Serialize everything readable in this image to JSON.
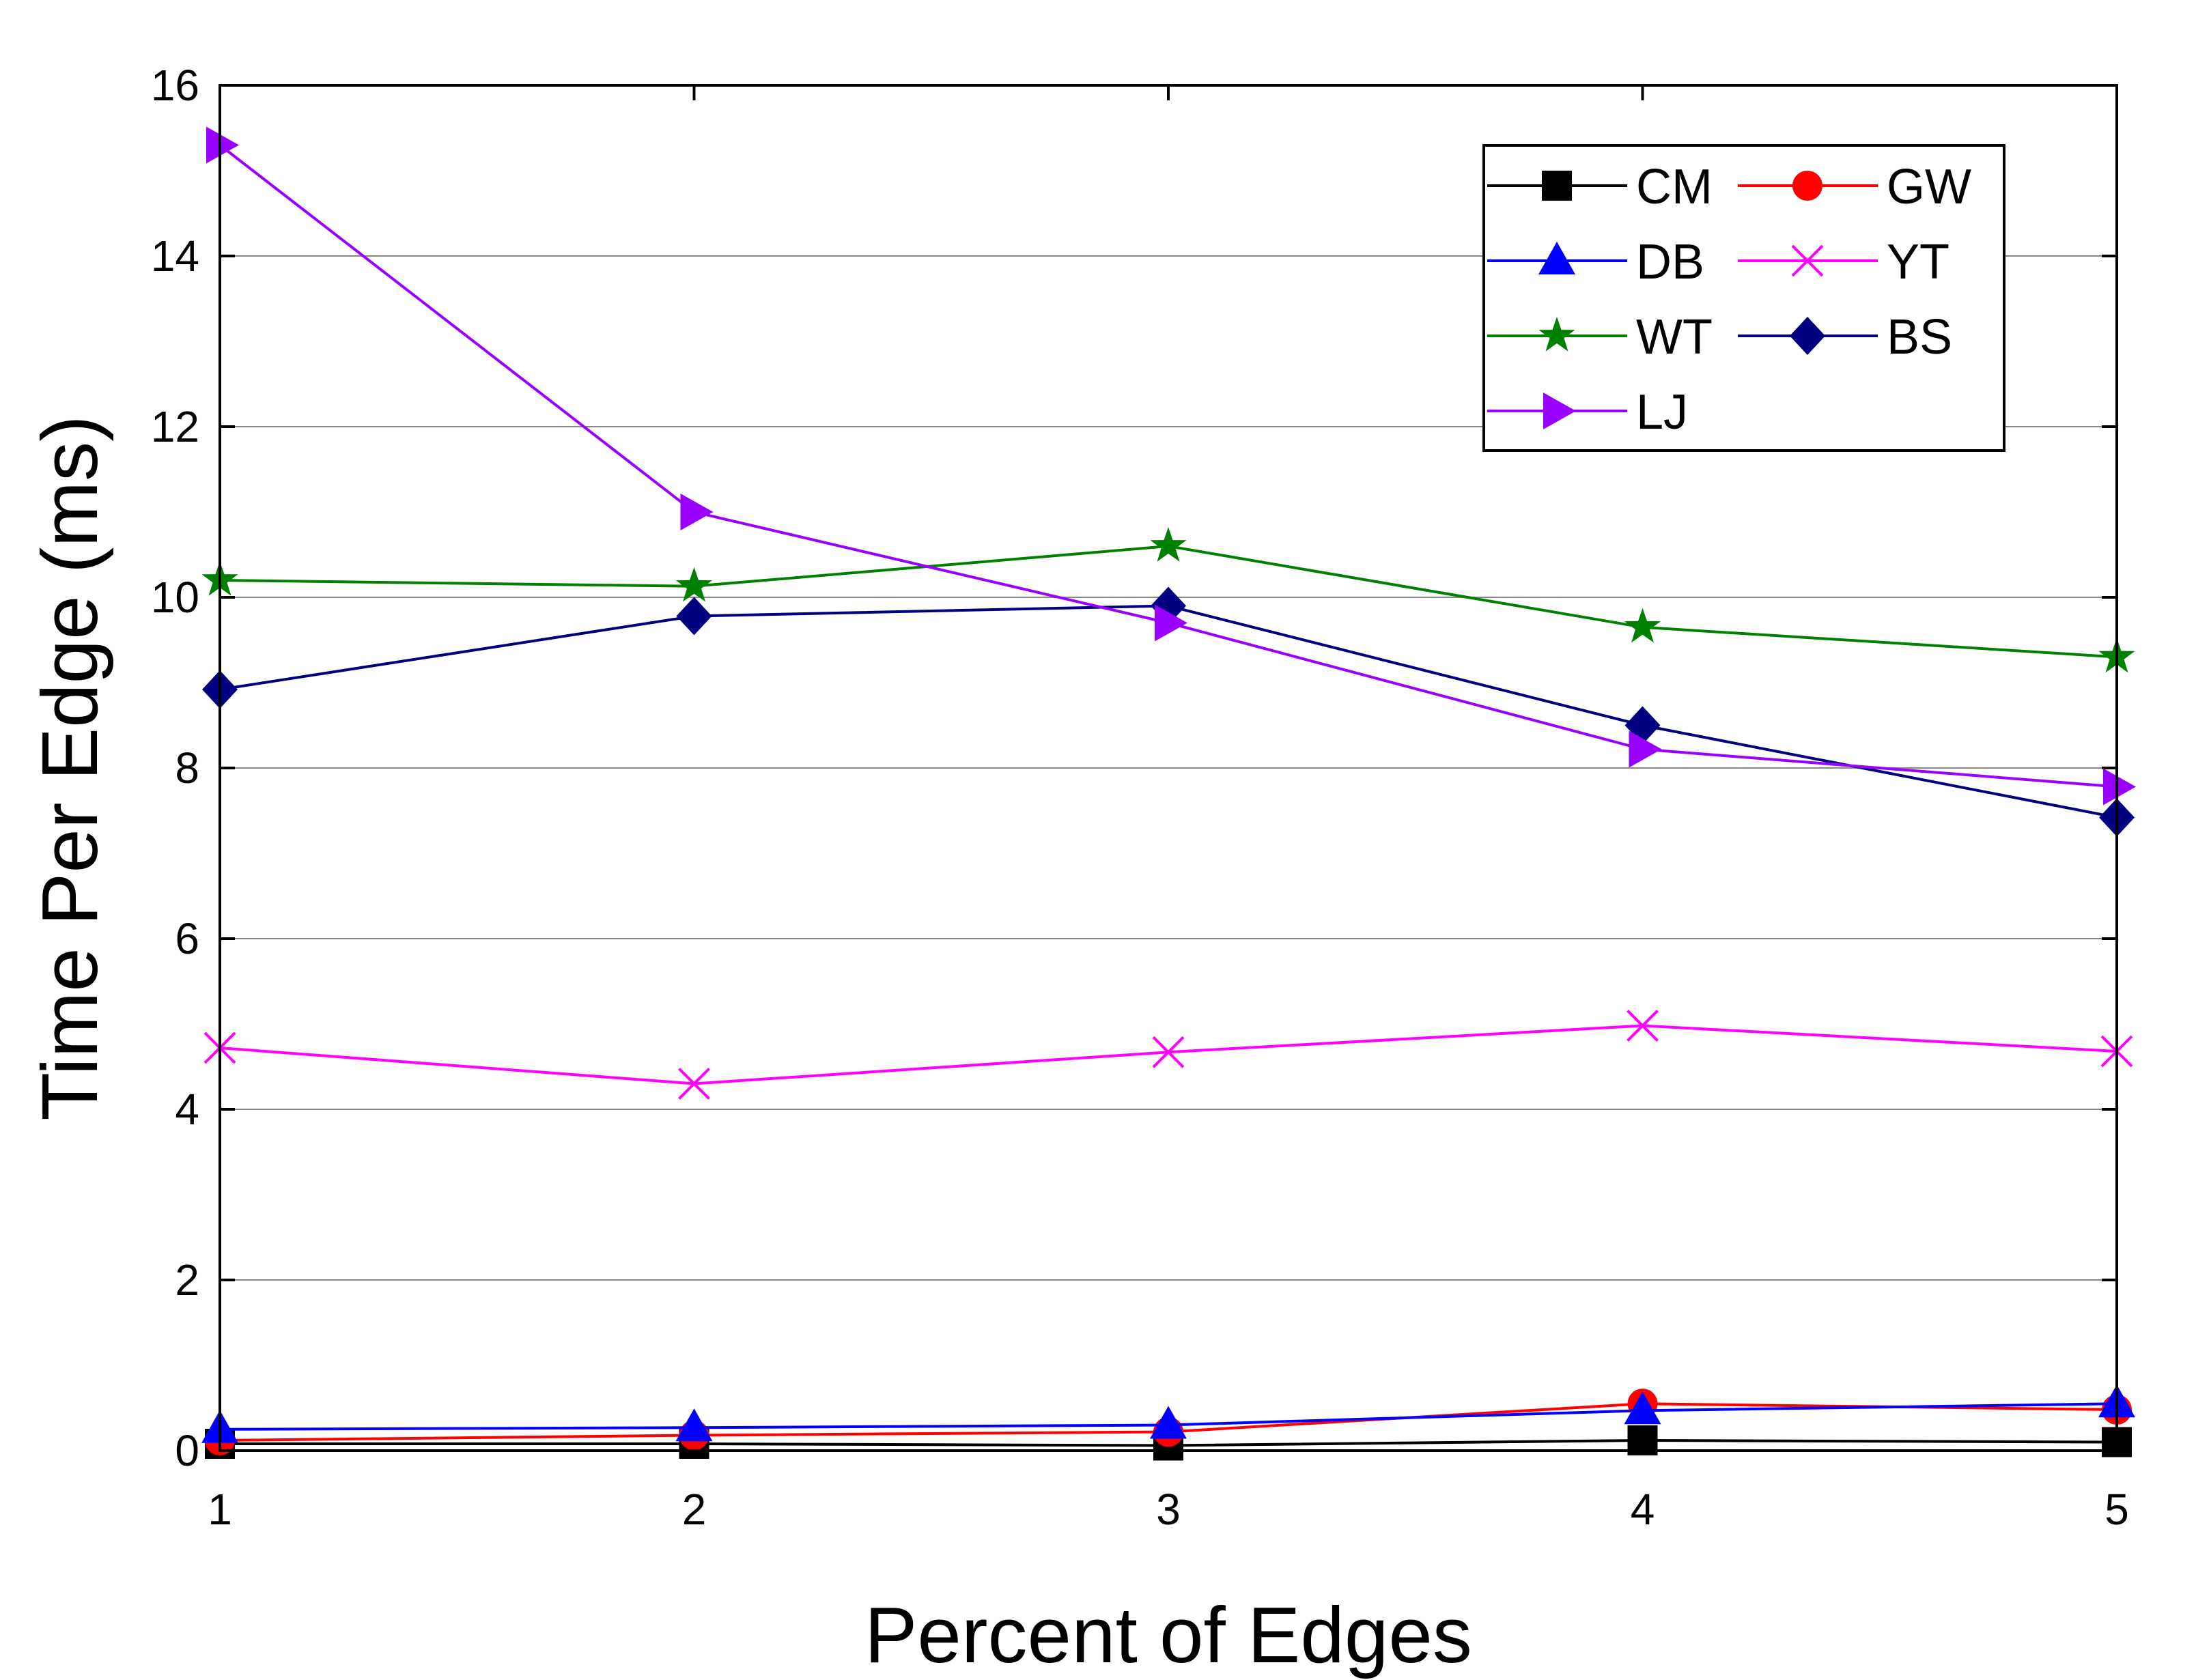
{
  "chart_data": {
    "type": "line",
    "title": "",
    "xlabel": "Percent of Edges",
    "ylabel": "Time Per Edge (ms)",
    "x": [
      1,
      2,
      3,
      4,
      5
    ],
    "xlim": [
      1,
      5
    ],
    "ylim": [
      0,
      16
    ],
    "xticks": [
      "1",
      "2",
      "3",
      "4",
      "5"
    ],
    "yticks": [
      "0",
      "2",
      "4",
      "6",
      "8",
      "10",
      "12",
      "14",
      "16"
    ],
    "grid": "horizontal",
    "legend_position": "top-right",
    "series": [
      {
        "name": "CM",
        "color": "#000000",
        "marker": "square",
        "values": [
          0.08,
          0.08,
          0.06,
          0.12,
          0.1
        ]
      },
      {
        "name": "GW",
        "color": "#ff0000",
        "marker": "circle",
        "values": [
          0.12,
          0.18,
          0.22,
          0.55,
          0.48
        ]
      },
      {
        "name": "DB",
        "color": "#0000ff",
        "marker": "triangle-up",
        "values": [
          0.25,
          0.27,
          0.3,
          0.47,
          0.55
        ]
      },
      {
        "name": "YT",
        "color": "#ff00ff",
        "marker": "x",
        "values": [
          4.72,
          4.3,
          4.67,
          4.98,
          4.68
        ]
      },
      {
        "name": "WT",
        "color": "#008000",
        "marker": "star",
        "values": [
          10.2,
          10.13,
          10.6,
          9.65,
          9.3
        ]
      },
      {
        "name": "BS",
        "color": "#000080",
        "marker": "diamond",
        "values": [
          8.92,
          9.78,
          9.9,
          8.5,
          7.42
        ]
      },
      {
        "name": "LJ",
        "color": "#9900ff",
        "marker": "triangle-right",
        "values": [
          15.3,
          11.0,
          9.7,
          8.22,
          7.78
        ]
      }
    ]
  }
}
